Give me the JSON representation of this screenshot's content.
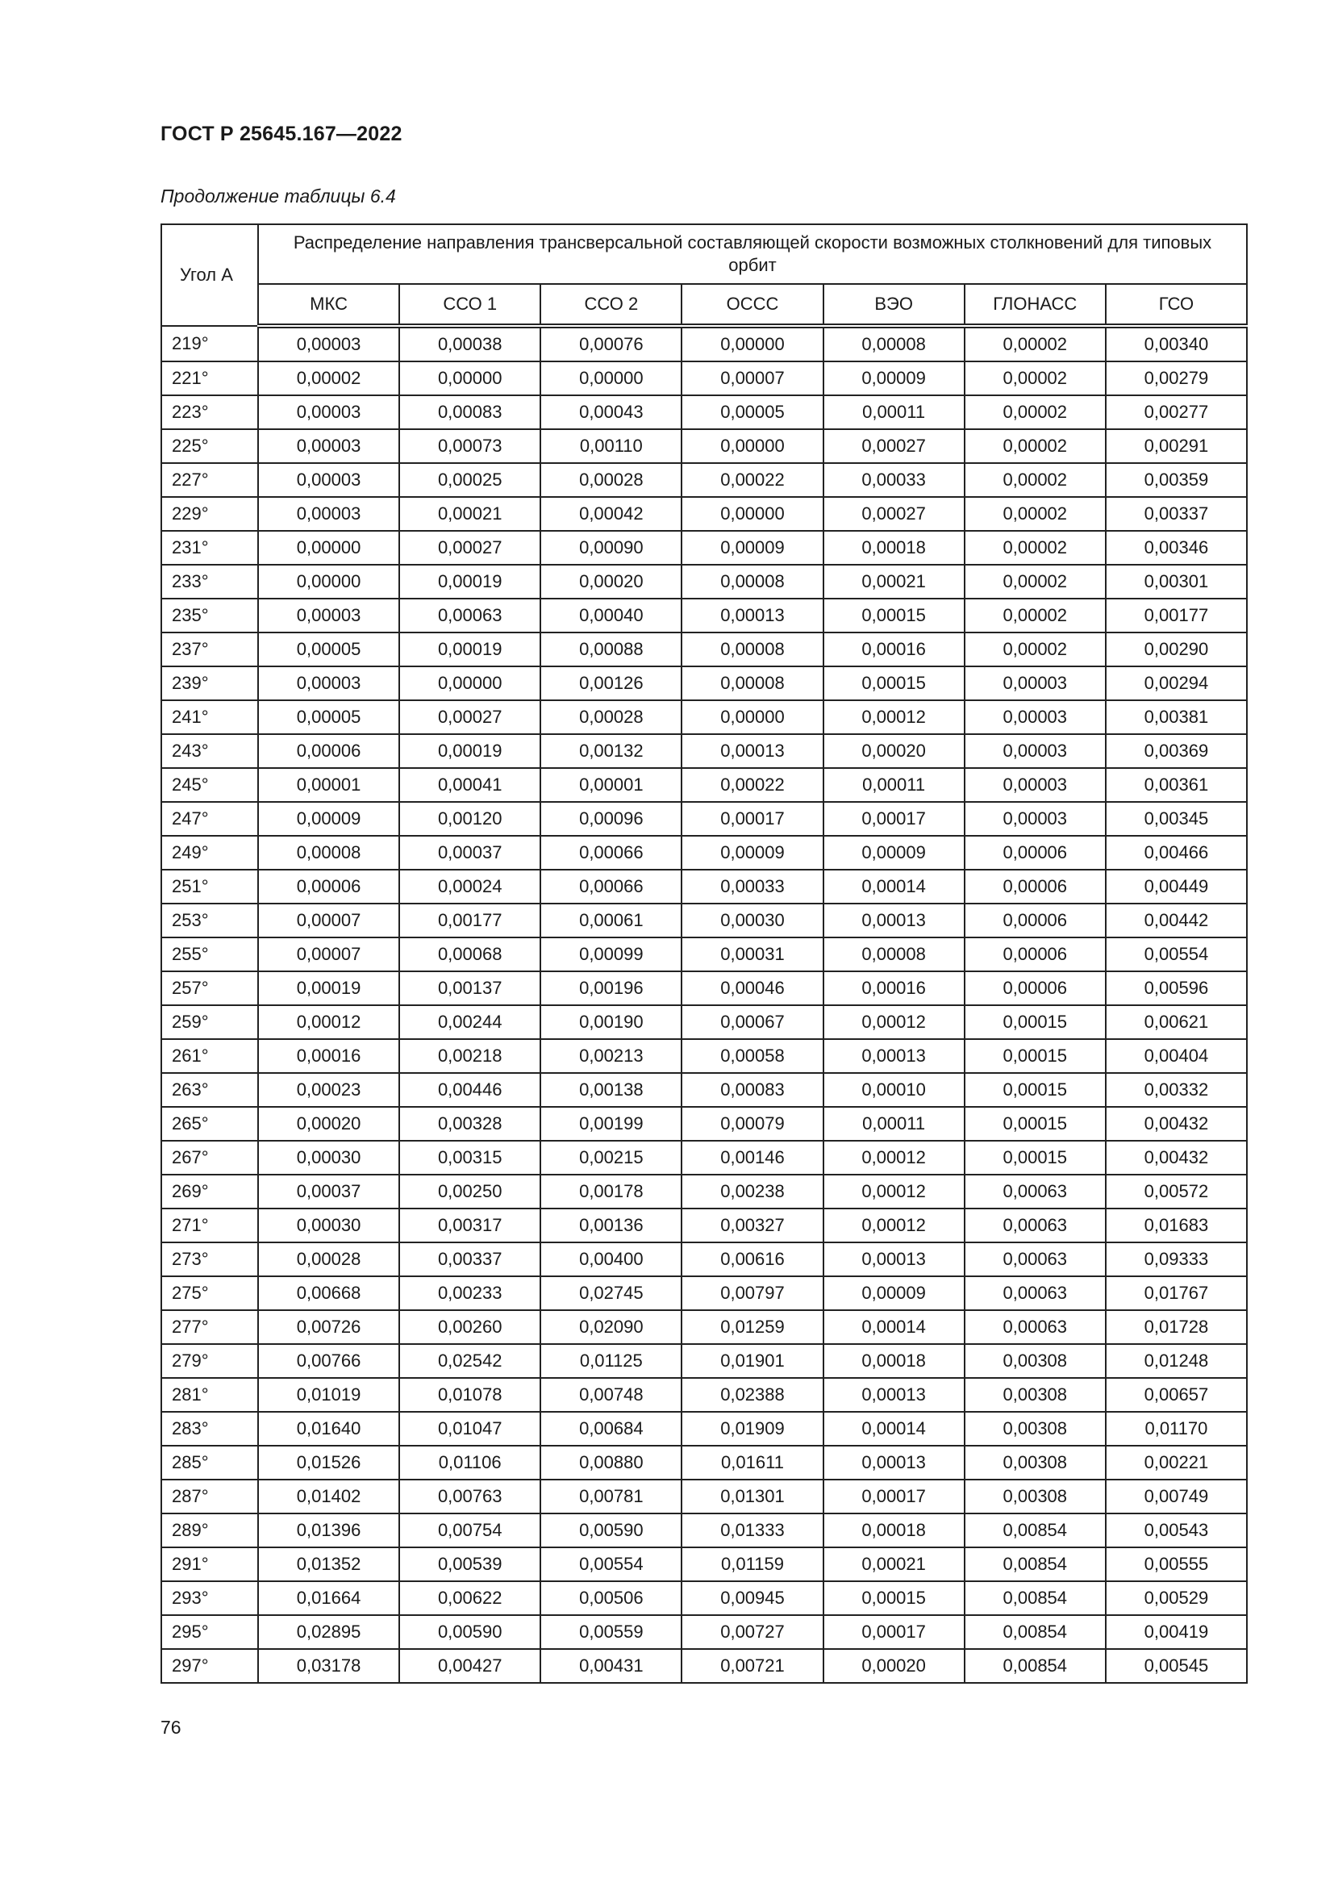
{
  "header": {
    "doc_id": "ГОСТ Р 25645.167—2022",
    "caption": "Продолжение таблицы 6.4"
  },
  "table": {
    "angle_header": "Угол А",
    "group_header": "Распределение направления трансверсальной составляющей скорости возможных столкновений для типовых орбит",
    "columns": [
      "МКС",
      "ССО 1",
      "ССО 2",
      "ОССС",
      "ВЭО",
      "ГЛОНАСС",
      "ГСО"
    ],
    "rows": [
      [
        "219°",
        "0,00003",
        "0,00038",
        "0,00076",
        "0,00000",
        "0,00008",
        "0,00002",
        "0,00340"
      ],
      [
        "221°",
        "0,00002",
        "0,00000",
        "0,00000",
        "0,00007",
        "0,00009",
        "0,00002",
        "0,00279"
      ],
      [
        "223°",
        "0,00003",
        "0,00083",
        "0,00043",
        "0,00005",
        "0,00011",
        "0,00002",
        "0,00277"
      ],
      [
        "225°",
        "0,00003",
        "0,00073",
        "0,00110",
        "0,00000",
        "0,00027",
        "0,00002",
        "0,00291"
      ],
      [
        "227°",
        "0,00003",
        "0,00025",
        "0,00028",
        "0,00022",
        "0,00033",
        "0,00002",
        "0,00359"
      ],
      [
        "229°",
        "0,00003",
        "0,00021",
        "0,00042",
        "0,00000",
        "0,00027",
        "0,00002",
        "0,00337"
      ],
      [
        "231°",
        "0,00000",
        "0,00027",
        "0,00090",
        "0,00009",
        "0,00018",
        "0,00002",
        "0,00346"
      ],
      [
        "233°",
        "0,00000",
        "0,00019",
        "0,00020",
        "0,00008",
        "0,00021",
        "0,00002",
        "0,00301"
      ],
      [
        "235°",
        "0,00003",
        "0,00063",
        "0,00040",
        "0,00013",
        "0,00015",
        "0,00002",
        "0,00177"
      ],
      [
        "237°",
        "0,00005",
        "0,00019",
        "0,00088",
        "0,00008",
        "0,00016",
        "0,00002",
        "0,00290"
      ],
      [
        "239°",
        "0,00003",
        "0,00000",
        "0,00126",
        "0,00008",
        "0,00015",
        "0,00003",
        "0,00294"
      ],
      [
        "241°",
        "0,00005",
        "0,00027",
        "0,00028",
        "0,00000",
        "0,00012",
        "0,00003",
        "0,00381"
      ],
      [
        "243°",
        "0,00006",
        "0,00019",
        "0,00132",
        "0,00013",
        "0,00020",
        "0,00003",
        "0,00369"
      ],
      [
        "245°",
        "0,00001",
        "0,00041",
        "0,00001",
        "0,00022",
        "0,00011",
        "0,00003",
        "0,00361"
      ],
      [
        "247°",
        "0,00009",
        "0,00120",
        "0,00096",
        "0,00017",
        "0,00017",
        "0,00003",
        "0,00345"
      ],
      [
        "249°",
        "0,00008",
        "0,00037",
        "0,00066",
        "0,00009",
        "0,00009",
        "0,00006",
        "0,00466"
      ],
      [
        "251°",
        "0,00006",
        "0,00024",
        "0,00066",
        "0,00033",
        "0,00014",
        "0,00006",
        "0,00449"
      ],
      [
        "253°",
        "0,00007",
        "0,00177",
        "0,00061",
        "0,00030",
        "0,00013",
        "0,00006",
        "0,00442"
      ],
      [
        "255°",
        "0,00007",
        "0,00068",
        "0,00099",
        "0,00031",
        "0,00008",
        "0,00006",
        "0,00554"
      ],
      [
        "257°",
        "0,00019",
        "0,00137",
        "0,00196",
        "0,00046",
        "0,00016",
        "0,00006",
        "0,00596"
      ],
      [
        "259°",
        "0,00012",
        "0,00244",
        "0,00190",
        "0,00067",
        "0,00012",
        "0,00015",
        "0,00621"
      ],
      [
        "261°",
        "0,00016",
        "0,00218",
        "0,00213",
        "0,00058",
        "0,00013",
        "0,00015",
        "0,00404"
      ],
      [
        "263°",
        "0,00023",
        "0,00446",
        "0,00138",
        "0,00083",
        "0,00010",
        "0,00015",
        "0,00332"
      ],
      [
        "265°",
        "0,00020",
        "0,00328",
        "0,00199",
        "0,00079",
        "0,00011",
        "0,00015",
        "0,00432"
      ],
      [
        "267°",
        "0,00030",
        "0,00315",
        "0,00215",
        "0,00146",
        "0,00012",
        "0,00015",
        "0,00432"
      ],
      [
        "269°",
        "0,00037",
        "0,00250",
        "0,00178",
        "0,00238",
        "0,00012",
        "0,00063",
        "0,00572"
      ],
      [
        "271°",
        "0,00030",
        "0,00317",
        "0,00136",
        "0,00327",
        "0,00012",
        "0,00063",
        "0,01683"
      ],
      [
        "273°",
        "0,00028",
        "0,00337",
        "0,00400",
        "0,00616",
        "0,00013",
        "0,00063",
        "0,09333"
      ],
      [
        "275°",
        "0,00668",
        "0,00233",
        "0,02745",
        "0,00797",
        "0,00009",
        "0,00063",
        "0,01767"
      ],
      [
        "277°",
        "0,00726",
        "0,00260",
        "0,02090",
        "0,01259",
        "0,00014",
        "0,00063",
        "0,01728"
      ],
      [
        "279°",
        "0,00766",
        "0,02542",
        "0,01125",
        "0,01901",
        "0,00018",
        "0,00308",
        "0,01248"
      ],
      [
        "281°",
        "0,01019",
        "0,01078",
        "0,00748",
        "0,02388",
        "0,00013",
        "0,00308",
        "0,00657"
      ],
      [
        "283°",
        "0,01640",
        "0,01047",
        "0,00684",
        "0,01909",
        "0,00014",
        "0,00308",
        "0,01170"
      ],
      [
        "285°",
        "0,01526",
        "0,01106",
        "0,00880",
        "0,01611",
        "0,00013",
        "0,00308",
        "0,00221"
      ],
      [
        "287°",
        "0,01402",
        "0,00763",
        "0,00781",
        "0,01301",
        "0,00017",
        "0,00308",
        "0,00749"
      ],
      [
        "289°",
        "0,01396",
        "0,00754",
        "0,00590",
        "0,01333",
        "0,00018",
        "0,00854",
        "0,00543"
      ],
      [
        "291°",
        "0,01352",
        "0,00539",
        "0,00554",
        "0,01159",
        "0,00021",
        "0,00854",
        "0,00555"
      ],
      [
        "293°",
        "0,01664",
        "0,00622",
        "0,00506",
        "0,00945",
        "0,00015",
        "0,00854",
        "0,00529"
      ],
      [
        "295°",
        "0,02895",
        "0,00590",
        "0,00559",
        "0,00727",
        "0,00017",
        "0,00854",
        "0,00419"
      ],
      [
        "297°",
        "0,03178",
        "0,00427",
        "0,00431",
        "0,00721",
        "0,00020",
        "0,00854",
        "0,00545"
      ]
    ]
  },
  "footer": {
    "page_number": "76"
  }
}
